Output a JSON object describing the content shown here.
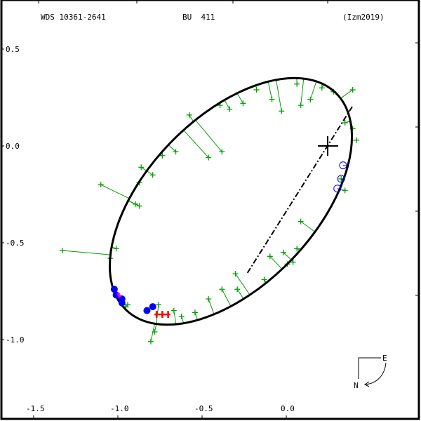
{
  "header": {
    "wds_id": "WDS 10361-2641",
    "discoverer": "BU  411",
    "reference": "(Izm2019)"
  },
  "compass": {
    "east_label": "E",
    "north_label": "N"
  },
  "colors": {
    "orbit": "#000000",
    "observations": "#00a000",
    "speckle": "#0000ff",
    "interferometric": "#ff00ff",
    "hipparcos_or_special": "#ff0000",
    "circles": "#0000ff"
  },
  "chart_data": {
    "type": "scatter",
    "title": "WDS 10361-2641  BU  411  (Izm2019)",
    "xlabel": "",
    "ylabel": "",
    "xlim": [
      -1.55,
      0.47
    ],
    "ylim": [
      -1.41,
      0.74
    ],
    "x_ticks": [
      "-1.5",
      "-1.0",
      "-0.5",
      "0.0"
    ],
    "x_tick_values": [
      -1.5,
      -1.0,
      -0.5,
      0.0
    ],
    "y_ticks": [
      "0.5",
      "0.0",
      "-0.5",
      "-1.0"
    ],
    "y_tick_values": [
      0.5,
      0.0,
      -0.5,
      -1.0
    ],
    "grid": false,
    "primary_star": [
      0.0,
      0.0
    ],
    "orbit_ellipse": {
      "center": [
        -0.48,
        -0.29
      ],
      "approx_extent_x": [
        -1.13,
        0.18
      ],
      "approx_extent_y": [
        -0.88,
        0.31
      ],
      "description": "apparent relative orbit, tilted ellipse"
    },
    "line_of_nodes": {
      "from": [
        0.12,
        0.2
      ],
      "to": [
        -0.42,
        -0.68
      ]
    },
    "series": [
      {
        "name": "micrometric observations (green +)",
        "points": [
          [
            -1.38,
            -0.54
          ],
          [
            -1.1,
            -0.53
          ],
          [
            -1.13,
            -0.58
          ],
          [
            -1.18,
            -0.2
          ],
          [
            -0.79,
            -0.03
          ],
          [
            -0.97,
            -0.11
          ],
          [
            -0.86,
            -0.05
          ],
          [
            -0.55,
            -0.03
          ],
          [
            -0.62,
            -0.06
          ],
          [
            -0.98,
            -0.19
          ],
          [
            -0.91,
            -0.15
          ],
          [
            -1.0,
            -0.3
          ],
          [
            -0.98,
            -0.31
          ],
          [
            -0.72,
            0.16
          ],
          [
            -0.56,
            0.21
          ],
          [
            -0.51,
            0.19
          ],
          [
            -0.44,
            0.22
          ],
          [
            -0.37,
            0.29
          ],
          [
            -0.29,
            0.24
          ],
          [
            -0.24,
            0.18
          ],
          [
            -0.16,
            0.32
          ],
          [
            -0.14,
            0.21
          ],
          [
            -0.09,
            0.24
          ],
          [
            -0.03,
            0.3
          ],
          [
            0.03,
            0.28
          ],
          [
            0.13,
            0.29
          ],
          [
            0.09,
            0.12
          ],
          [
            0.15,
            0.03
          ],
          [
            0.13,
            0.09
          ],
          [
            0.09,
            -0.23
          ],
          [
            0.07,
            -0.17
          ],
          [
            -0.14,
            -0.39
          ],
          [
            -0.21,
            -0.61
          ],
          [
            -0.3,
            -0.57
          ],
          [
            -0.23,
            -0.55
          ],
          [
            -0.16,
            -0.53
          ],
          [
            -0.18,
            -0.6
          ],
          [
            -0.33,
            -0.69
          ],
          [
            -0.48,
            -0.66
          ],
          [
            -0.47,
            -0.74
          ],
          [
            -0.55,
            -0.74
          ],
          [
            -0.62,
            -0.79
          ],
          [
            -0.69,
            -0.86
          ],
          [
            -0.76,
            -0.88
          ],
          [
            -0.8,
            -0.85
          ],
          [
            -0.88,
            -0.82
          ],
          [
            -0.9,
            -0.96
          ],
          [
            -0.92,
            -1.01
          ],
          [
            -1.05,
            -0.83
          ],
          [
            -1.04,
            -0.82
          ]
        ]
      },
      {
        "name": "speckle observations (blue filled)",
        "points": [
          [
            -1.11,
            -0.74
          ],
          [
            -1.1,
            -0.77
          ],
          [
            -1.07,
            -0.79
          ],
          [
            -1.07,
            -0.81
          ],
          [
            -0.94,
            -0.85
          ],
          [
            -0.91,
            -0.83
          ]
        ]
      },
      {
        "name": "interferometric (magenta)",
        "points": [
          [
            -1.09,
            -0.76
          ],
          [
            -1.08,
            -0.78
          ]
        ]
      },
      {
        "name": "special measures (red H-bars)",
        "points": [
          [
            -0.89,
            -0.87
          ],
          [
            -0.86,
            -0.87
          ],
          [
            -0.83,
            -0.87
          ]
        ]
      },
      {
        "name": "circled positions (blue open circles)",
        "points": [
          [
            0.08,
            -0.1
          ],
          [
            0.07,
            -0.17
          ],
          [
            0.05,
            -0.22
          ]
        ]
      }
    ]
  }
}
